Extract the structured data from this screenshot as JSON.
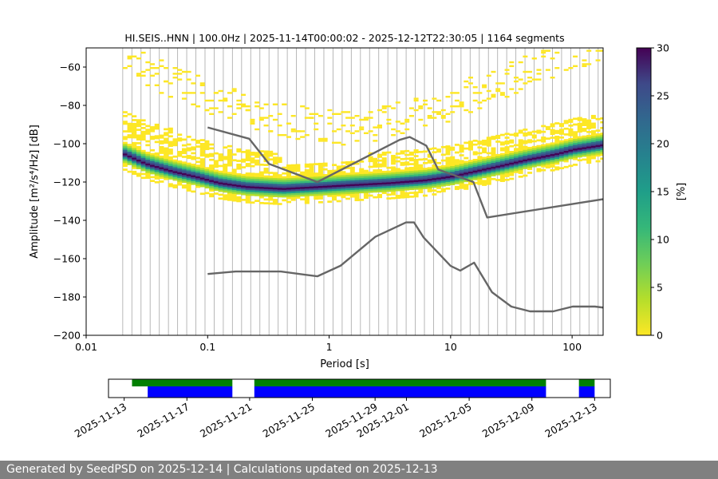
{
  "chart_data": [
    {
      "type": "heatmap",
      "title": "HI.SEIS..HNN | 100.0Hz | 2025-11-14T00:00:02 - 2025-12-12T22:30:05 | 1164 segments",
      "xlabel": "Period [s]",
      "ylabel": "Amplitude [m²/s⁴/Hz] [dB]",
      "x_scale": "log",
      "xlim": [
        0.01,
        180
      ],
      "ylim": [
        -200,
        -50
      ],
      "x_ticks": [
        0.01,
        0.1,
        1,
        10,
        100
      ],
      "x_tick_labels": [
        "0.01",
        "0.1",
        "1",
        "10",
        "100"
      ],
      "y_ticks": [
        -200,
        -180,
        -160,
        -140,
        -120,
        -100,
        -80,
        -60
      ],
      "y_tick_labels": [
        "−200",
        "−180",
        "−160",
        "−140",
        "−120",
        "−100",
        "−80",
        "−60"
      ],
      "grid": "vertical lines at periods",
      "colorbar": {
        "label": "[%]",
        "range": [
          0,
          30
        ],
        "ticks": [
          0,
          5,
          10,
          15,
          20,
          25,
          30
        ],
        "tick_labels": [
          "0",
          "5",
          "10",
          "15",
          "20",
          "25",
          "30"
        ],
        "colormap": "viridis_r"
      },
      "density_mode": {
        "x": [
          0.02,
          0.03,
          0.05,
          0.08,
          0.12,
          0.2,
          0.4,
          0.8,
          1.5,
          3,
          6,
          10,
          15,
          25,
          40,
          70,
          100,
          180
        ],
        "y": [
          -106,
          -111,
          -115,
          -118,
          -121,
          -123,
          -124,
          -123,
          -122,
          -121,
          -119.5,
          -117.5,
          -115,
          -112,
          -109,
          -106,
          -103.5,
          -101
        ]
      },
      "noise_models": [
        {
          "name": "high",
          "x": [
            0.1,
            0.22,
            0.32,
            0.8,
            3.8,
            4.6,
            6.3,
            7.9,
            15.4,
            20,
            354.8
          ],
          "y": [
            -91.5,
            -97.4,
            -110.5,
            -120,
            -98,
            -96.5,
            -101,
            -113.5,
            -120,
            -138.5,
            -126
          ]
        },
        {
          "name": "low",
          "x": [
            0.1,
            0.17,
            0.4,
            0.8,
            1.24,
            2.4,
            4.3,
            5,
            6,
            10,
            12,
            15.6,
            21.9,
            31.6,
            45,
            70,
            101,
            154,
            328,
            600
          ],
          "y": [
            -168,
            -166.7,
            -166.7,
            -169.2,
            -163.7,
            -148.6,
            -141.1,
            -141.1,
            -149,
            -163.8,
            -166.2,
            -162.1,
            -177.5,
            -185,
            -187.5,
            -187.5,
            -185,
            -185,
            -187.5,
            -184.4
          ]
        }
      ]
    },
    {
      "type": "timeline",
      "x_ticks": [
        "2025-11-13",
        "2025-11-17",
        "2025-11-21",
        "2025-11-25",
        "2025-11-29",
        "2025-12-01",
        "2025-12-05",
        "2025-12-09",
        "2025-12-13"
      ],
      "xlim": [
        "2025-11-12",
        "2025-12-14"
      ],
      "colors": {
        "available": "#008000",
        "used": "#0000ff"
      },
      "available": [
        [
          "2025-11-13.5",
          "2025-11-19.9"
        ],
        [
          "2025-11-21.3",
          "2025-12-09.9"
        ],
        [
          "2025-12-12.0",
          "2025-12-13.0"
        ]
      ],
      "used": [
        [
          "2025-11-14.5",
          "2025-11-19.9"
        ],
        [
          "2025-11-21.3",
          "2025-12-09.9"
        ],
        [
          "2025-12-12.0",
          "2025-12-13.0"
        ]
      ]
    }
  ],
  "footer": {
    "text": "Generated by SeedPSD on 2025-12-14 | Calculations updated on 2025-12-13"
  }
}
